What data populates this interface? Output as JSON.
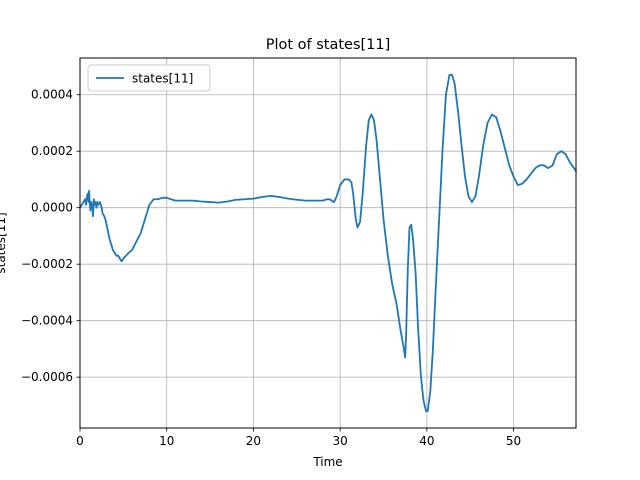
{
  "chart_data": {
    "type": "line",
    "title": "Plot of states[11]",
    "xlabel": "Time",
    "ylabel": "states[11]",
    "xlim": [
      0,
      57.2
    ],
    "ylim": [
      -0.00078,
      0.00053
    ],
    "grid": true,
    "legend_position": "top-left",
    "x_ticks": [
      0,
      10,
      20,
      30,
      40,
      50
    ],
    "x_tick_labels": [
      "0",
      "10",
      "20",
      "30",
      "40",
      "50"
    ],
    "y_ticks": [
      -0.0006,
      -0.0004,
      -0.0002,
      0.0,
      0.0002,
      0.0004
    ],
    "y_tick_labels": [
      "−0.0006",
      "−0.0004",
      "−0.0002",
      "0.0000",
      "0.0002",
      "0.0004"
    ],
    "series": [
      {
        "name": "states[11]",
        "color": "#1f77b4",
        "points": [
          [
            0.0,
            0.0
          ],
          [
            0.2,
            1e-05
          ],
          [
            0.4,
            2e-05
          ],
          [
            0.6,
            3e-05
          ],
          [
            0.7,
            1e-05
          ],
          [
            0.8,
            4e-05
          ],
          [
            0.9,
            5e-05
          ],
          [
            1.0,
            2e-05
          ],
          [
            1.05,
            6e-05
          ],
          [
            1.1,
            3e-05
          ],
          [
            1.2,
            -1e-05
          ],
          [
            1.3,
            2e-05
          ],
          [
            1.4,
            1e-05
          ],
          [
            1.5,
            -3e-05
          ],
          [
            1.6,
            3e-05
          ],
          [
            1.7,
            1e-05
          ],
          [
            1.8,
            2e-05
          ],
          [
            1.9,
            0.0
          ],
          [
            2.0,
            2e-05
          ],
          [
            2.1,
            1e-05
          ],
          [
            2.3,
            2e-05
          ],
          [
            2.5,
            0.0
          ],
          [
            2.6,
            -2e-05
          ],
          [
            2.8,
            -3e-05
          ],
          [
            3.0,
            -5e-05
          ],
          [
            3.2,
            -8e-05
          ],
          [
            3.4,
            -0.00011
          ],
          [
            3.6,
            -0.00013
          ],
          [
            3.8,
            -0.00015
          ],
          [
            4.0,
            -0.00016
          ],
          [
            4.2,
            -0.00017
          ],
          [
            4.4,
            -0.00017
          ],
          [
            4.6,
            -0.00018
          ],
          [
            4.8,
            -0.00019
          ],
          [
            5.0,
            -0.00018
          ],
          [
            5.3,
            -0.00017
          ],
          [
            5.6,
            -0.00016
          ],
          [
            6.0,
            -0.00015
          ],
          [
            6.5,
            -0.00012
          ],
          [
            7.0,
            -9e-05
          ],
          [
            7.5,
            -4e-05
          ],
          [
            8.0,
            1e-05
          ],
          [
            8.5,
            3e-05
          ],
          [
            9.0,
            3e-05
          ],
          [
            9.5,
            3.5e-05
          ],
          [
            10.0,
            3.5e-05
          ],
          [
            10.5,
            3e-05
          ],
          [
            11.0,
            2.5e-05
          ],
          [
            12.0,
            2.5e-05
          ],
          [
            13.0,
            2.5e-05
          ],
          [
            14.0,
            2.2e-05
          ],
          [
            15.0,
            2e-05
          ],
          [
            16.0,
            1.8e-05
          ],
          [
            17.0,
            2.2e-05
          ],
          [
            18.0,
            2.8e-05
          ],
          [
            19.0,
            3e-05
          ],
          [
            20.0,
            3.2e-05
          ],
          [
            21.0,
            3.8e-05
          ],
          [
            22.0,
            4.2e-05
          ],
          [
            23.0,
            3.8e-05
          ],
          [
            24.0,
            3.2e-05
          ],
          [
            25.0,
            2.8e-05
          ],
          [
            26.0,
            2.5e-05
          ],
          [
            27.0,
            2.5e-05
          ],
          [
            28.0,
            2.5e-05
          ],
          [
            28.5,
            3e-05
          ],
          [
            28.8,
            3e-05
          ],
          [
            29.0,
            2.5e-05
          ],
          [
            29.3,
            2e-05
          ],
          [
            29.6,
            4e-05
          ],
          [
            30.0,
            8e-05
          ],
          [
            30.5,
            0.0001
          ],
          [
            31.0,
            0.0001
          ],
          [
            31.3,
            9e-05
          ],
          [
            31.5,
            5e-05
          ],
          [
            31.8,
            -4e-05
          ],
          [
            32.0,
            -7e-05
          ],
          [
            32.3,
            -5e-05
          ],
          [
            32.6,
            5e-05
          ],
          [
            33.0,
            0.00022
          ],
          [
            33.3,
            0.00031
          ],
          [
            33.6,
            0.00033
          ],
          [
            33.9,
            0.00031
          ],
          [
            34.2,
            0.00024
          ],
          [
            34.6,
            0.0001
          ],
          [
            35.0,
            -4e-05
          ],
          [
            35.5,
            -0.00017
          ],
          [
            36.0,
            -0.00027
          ],
          [
            36.5,
            -0.00034
          ],
          [
            37.0,
            -0.00044
          ],
          [
            37.3,
            -0.00049
          ],
          [
            37.5,
            -0.00053
          ],
          [
            37.6,
            -0.00046
          ],
          [
            37.8,
            -0.00022
          ],
          [
            38.0,
            -7e-05
          ],
          [
            38.2,
            -6e-05
          ],
          [
            38.4,
            -0.00011
          ],
          [
            38.7,
            -0.00023
          ],
          [
            39.0,
            -0.00043
          ],
          [
            39.3,
            -0.00059
          ],
          [
            39.6,
            -0.00068
          ],
          [
            39.9,
            -0.00072
          ],
          [
            40.1,
            -0.00072
          ],
          [
            40.4,
            -0.00065
          ],
          [
            40.7,
            -0.0005
          ],
          [
            41.0,
            -0.0003
          ],
          [
            41.4,
            -5e-05
          ],
          [
            41.8,
            0.0002
          ],
          [
            42.2,
            0.0004
          ],
          [
            42.6,
            0.00047
          ],
          [
            42.9,
            0.00047
          ],
          [
            43.2,
            0.00044
          ],
          [
            43.6,
            0.00034
          ],
          [
            44.0,
            0.00022
          ],
          [
            44.4,
            0.00011
          ],
          [
            44.8,
            4e-05
          ],
          [
            45.2,
            2e-05
          ],
          [
            45.6,
            4e-05
          ],
          [
            46.0,
            0.00011
          ],
          [
            46.5,
            0.00022
          ],
          [
            47.0,
            0.0003
          ],
          [
            47.5,
            0.00033
          ],
          [
            48.0,
            0.00032
          ],
          [
            48.5,
            0.00027
          ],
          [
            49.0,
            0.00021
          ],
          [
            49.5,
            0.00015
          ],
          [
            50.0,
            0.00011
          ],
          [
            50.5,
            8e-05
          ],
          [
            51.0,
            8.5e-05
          ],
          [
            51.5,
            0.0001
          ],
          [
            52.0,
            0.00012
          ],
          [
            52.5,
            0.00014
          ],
          [
            53.0,
            0.00015
          ],
          [
            53.5,
            0.00015
          ],
          [
            54.0,
            0.00014
          ],
          [
            54.5,
            0.00015
          ],
          [
            55.0,
            0.00019
          ],
          [
            55.5,
            0.0002
          ],
          [
            56.0,
            0.00019
          ],
          [
            56.5,
            0.00016
          ],
          [
            57.2,
            0.00013
          ]
        ]
      }
    ]
  }
}
